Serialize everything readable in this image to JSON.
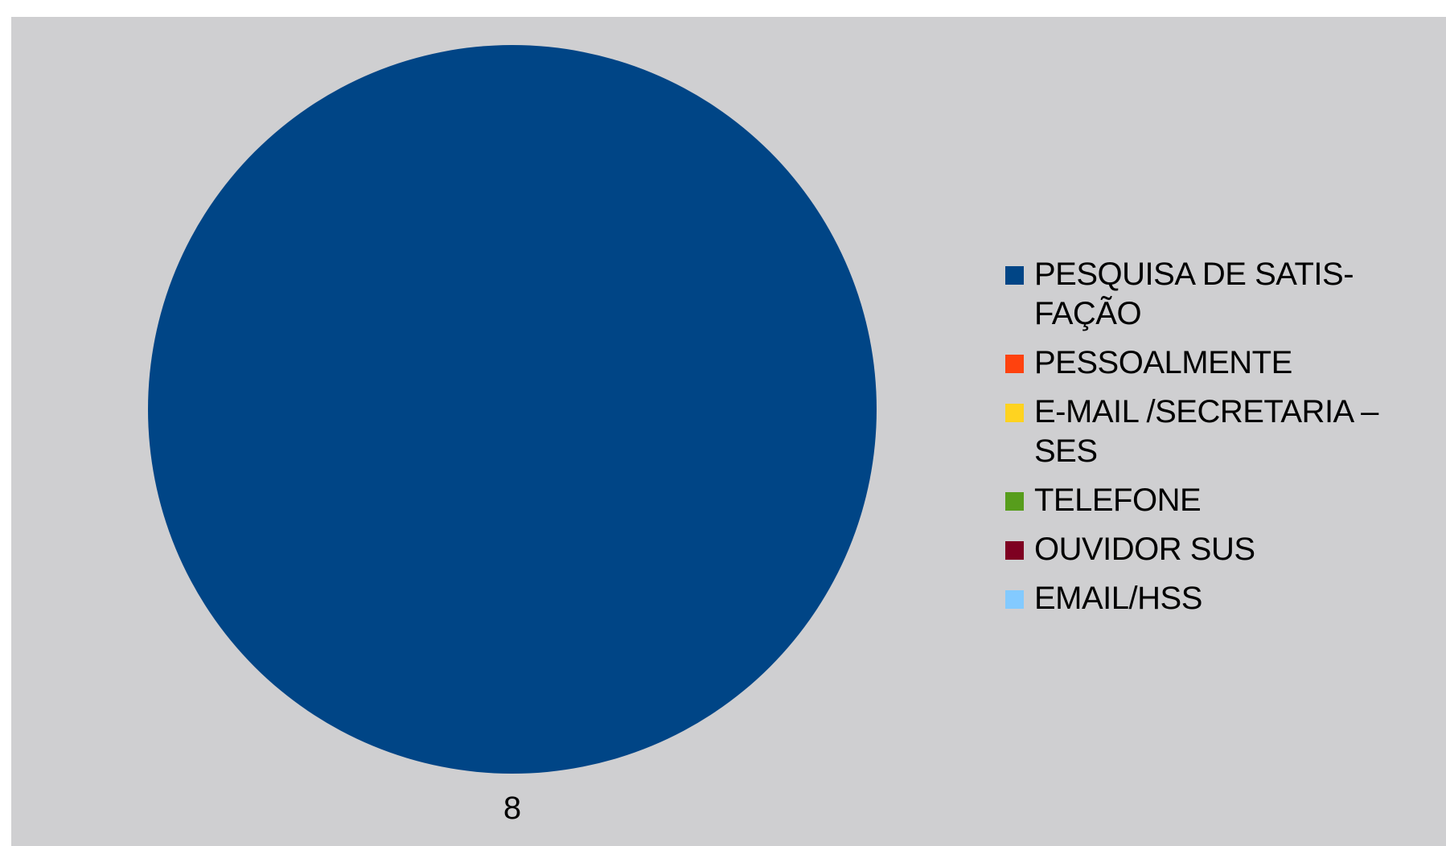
{
  "chart_data": {
    "type": "pie",
    "categories": [
      "PESQUISA DE SATIS-FAÇÃO",
      "PESSOALMENTE",
      "E-MAIL /SECRETARIA – SES",
      "TELEFONE",
      "OUVIDOR SUS",
      "EMAIL/HSS"
    ],
    "values": [
      8,
      0,
      0,
      0,
      0,
      0
    ],
    "data_labels": [
      "8",
      "",
      "",
      "",
      "",
      ""
    ],
    "colors": [
      "#004586",
      "#ff420e",
      "#ffd320",
      "#579d1c",
      "#7e0021",
      "#83caff"
    ],
    "legend_position": "right",
    "background": "#cfcfd1"
  }
}
